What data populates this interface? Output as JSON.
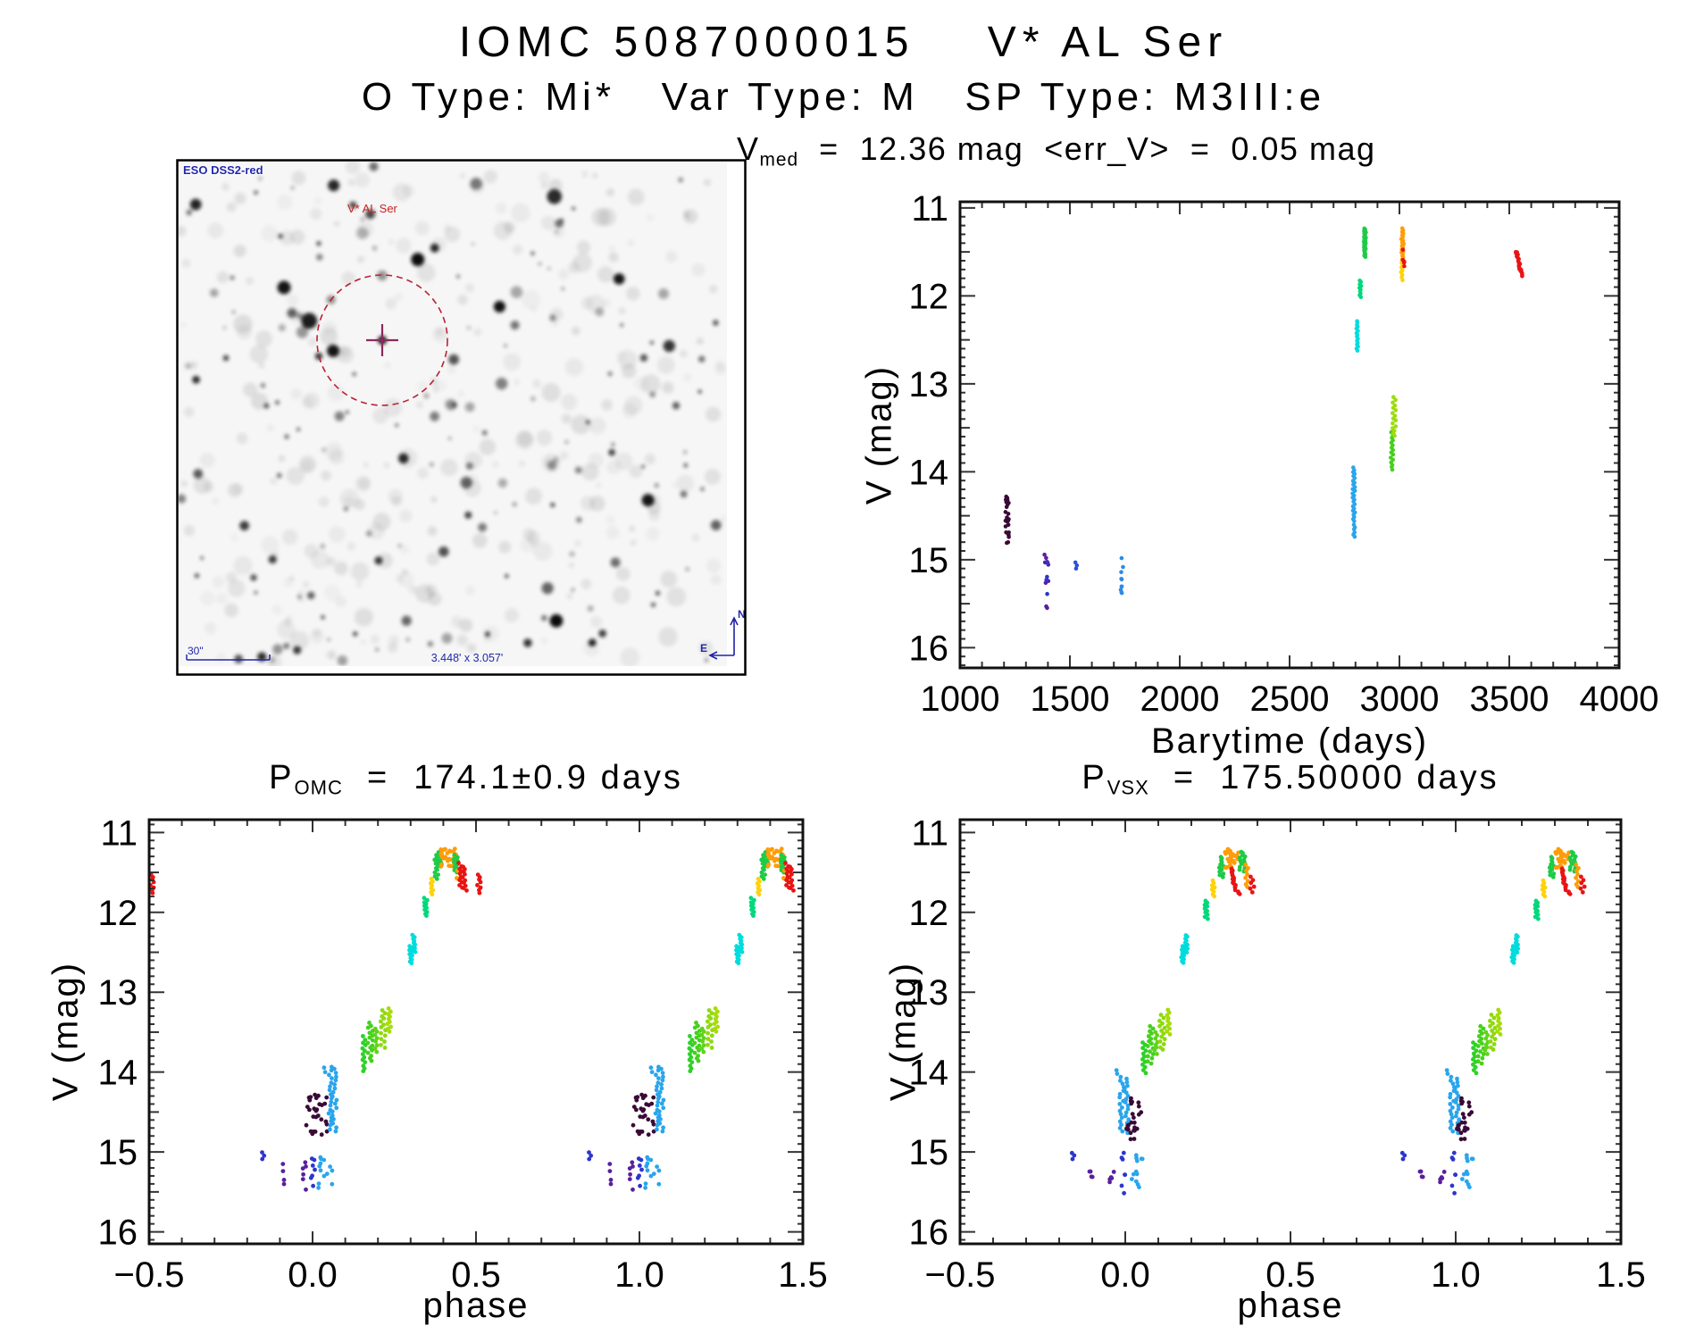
{
  "page": {
    "title": "IOMC 5087000015    V* AL Ser",
    "subtitle": "O Type: Mi*   Var Type: M   SP Type: M3III:e"
  },
  "finder": {
    "survey_label": "ESO DSS2-red",
    "target_label": "V* AL Ser",
    "scale_label": "30\"",
    "fov_label": "3.448' x 3.057'",
    "compass_north": "N",
    "compass_east": "E",
    "annotation_color": "#2228aa",
    "target_marker_color": "#cc2222"
  },
  "lightcurve_header": {
    "prefix": "V",
    "sub": "med",
    "rest": "  =  12.36 mag  <err_V>  =  0.05 mag"
  },
  "omc_header": {
    "prefix": "P",
    "sub": "OMC",
    "rest": "  =  174.1±0.9 days"
  },
  "vsx_header": {
    "prefix": "P",
    "sub": "VSX",
    "rest": "  =  175.50000 days"
  },
  "chart_data": [
    {
      "id": "lightcurve",
      "type": "scatter",
      "title": "V_med = 12.36 mag <err_V> = 0.05 mag",
      "xlabel": "Barytime (days)",
      "ylabel": "V (mag)",
      "xlim": [
        1000,
        4000
      ],
      "ylim": [
        16,
        11
      ],
      "y_axis_inverted_mag": true,
      "xticks": [
        1000,
        1500,
        2000,
        2500,
        3000,
        3500,
        4000
      ],
      "xtick_labels": [
        "1000",
        "1500",
        "2000",
        "2500",
        "3000",
        "3500",
        "4000"
      ],
      "yticks": [
        11,
        12,
        13,
        14,
        15,
        16
      ],
      "ytick_labels": [
        "11",
        "12",
        "13",
        "14",
        "15",
        "16"
      ],
      "x_minor": 100,
      "y_minor": 0.1,
      "grid": false,
      "legend": "none (color encodes observing epoch)",
      "dot": 2.3,
      "wrap": 0,
      "clusters": [
        {
          "x": [
            1205,
            1222
          ],
          "v": [
            14.28,
            14.82
          ],
          "c": "#3a0a36",
          "n": 26,
          "k": "scatter"
        },
        {
          "x": [
            1382,
            1402
          ],
          "v": [
            14.92,
            15.55
          ],
          "c": "#5a1f9e",
          "n": 10,
          "k": "scatter"
        },
        {
          "x": [
            1388,
            1400
          ],
          "v": [
            15.02,
            15.45
          ],
          "c": "#2d35cc",
          "n": 4,
          "k": "scatter"
        },
        {
          "x": [
            1525,
            1533
          ],
          "v": [
            15.02,
            15.13
          ],
          "c": "#2d50d8",
          "n": 3,
          "k": "strip"
        },
        {
          "x": [
            1730,
            1744
          ],
          "v": [
            14.98,
            15.42
          ],
          "c": "#2e8ae4",
          "n": 10,
          "k": "scatter"
        },
        {
          "x": [
            2786,
            2798
          ],
          "v": [
            13.95,
            14.58
          ],
          "c": "#29a5ec",
          "n": 26,
          "k": "strip"
        },
        {
          "x": [
            2790,
            2800
          ],
          "v": [
            14.6,
            14.76
          ],
          "c": "#29a5ec",
          "n": 6,
          "k": "strip"
        },
        {
          "x": [
            2804,
            2812
          ],
          "v": [
            12.28,
            12.64
          ],
          "c": "#00dcdc",
          "n": 16,
          "k": "strip"
        },
        {
          "x": [
            2818,
            2826
          ],
          "v": [
            11.82,
            12.03
          ],
          "c": "#00d87c",
          "n": 10,
          "k": "strip"
        },
        {
          "x": [
            2836,
            2848
          ],
          "v": [
            11.23,
            11.57
          ],
          "c": "#1ecb46",
          "n": 22,
          "k": "strip"
        },
        {
          "x": [
            2960,
            2972
          ],
          "v": [
            13.55,
            14.0
          ],
          "c": "#46d01e",
          "n": 16,
          "k": "strip"
        },
        {
          "x": [
            2968,
            2984
          ],
          "v": [
            13.15,
            13.62
          ],
          "c": "#9edc0e",
          "n": 16,
          "k": "strip"
        },
        {
          "x": [
            3008,
            3020
          ],
          "v": [
            11.23,
            11.62
          ],
          "c": "#ff9c08",
          "n": 20,
          "k": "strip"
        },
        {
          "x": [
            3006,
            3016
          ],
          "v": [
            11.62,
            11.84
          ],
          "c": "#ffd20a",
          "n": 8,
          "k": "strip"
        },
        {
          "x": [
            3012,
            3022
          ],
          "v": [
            11.42,
            11.72
          ],
          "c": "#e81414",
          "n": 5,
          "k": "scatter"
        },
        {
          "x": [
            3530,
            3562
          ],
          "v": [
            11.49,
            11.78
          ],
          "c": "#e81414",
          "n": 22,
          "k": "blob"
        }
      ]
    },
    {
      "id": "phase_omc",
      "type": "scatter",
      "title": "P_OMC = 174.1±0.9 days",
      "xlabel": "phase",
      "ylabel": "V (mag)",
      "xlim": [
        -0.5,
        1.5
      ],
      "ylim": [
        16,
        11
      ],
      "y_axis_inverted_mag": true,
      "xticks": [
        -0.5,
        0.0,
        0.5,
        1.0,
        1.5
      ],
      "xtick_labels": [
        "−0.5",
        "0.0",
        "0.5",
        "1.0",
        "1.5"
      ],
      "yticks": [
        11,
        12,
        13,
        14,
        15,
        16
      ],
      "ytick_labels": [
        "11",
        "12",
        "13",
        "14",
        "15",
        "16"
      ],
      "x_minor": 0.1,
      "y_minor": 0.1,
      "grid": false,
      "legend": "none (color encodes observing epoch)",
      "dot": 2.4,
      "wrap": 1,
      "clusters": [
        {
          "x": [
            -0.155,
            -0.147
          ],
          "v": [
            15.0,
            15.12
          ],
          "c": "#2d35cc",
          "n": 3,
          "k": "strip"
        },
        {
          "x": [
            -0.096,
            -0.086
          ],
          "v": [
            15.15,
            15.45
          ],
          "c": "#5a1f9e",
          "n": 4,
          "k": "scatter"
        },
        {
          "x": [
            -0.036,
            -0.02
          ],
          "v": [
            15.12,
            15.48
          ],
          "c": "#5a1f9e",
          "n": 6,
          "k": "scatter"
        },
        {
          "x": [
            -0.005,
            0.007
          ],
          "v": [
            14.9,
            15.52
          ],
          "c": "#2d35cc",
          "n": 7,
          "k": "scatter"
        },
        {
          "x": [
            0.018,
            0.06
          ],
          "v": [
            15.02,
            15.45
          ],
          "c": "#29a5ec",
          "n": 13,
          "k": "scatter"
        },
        {
          "x": [
            -0.02,
            0.045
          ],
          "v": [
            14.28,
            14.8
          ],
          "c": "#3a0a36",
          "n": 28,
          "k": "scatter"
        },
        {
          "x": [
            0.045,
            0.075
          ],
          "v": [
            13.93,
            14.76
          ],
          "c": "#29a5ec",
          "n": 34,
          "k": "strip"
        },
        {
          "x": [
            0.032,
            0.04
          ],
          "v": [
            13.94,
            14.03
          ],
          "c": "#29a5ec",
          "n": 2,
          "k": "strip"
        },
        {
          "x": [
            0.152,
            0.163
          ],
          "v": [
            13.55,
            14.02
          ],
          "c": "#2ed128",
          "n": 13,
          "k": "strip"
        },
        {
          "x": [
            0.168,
            0.187
          ],
          "v": [
            13.38,
            13.88
          ],
          "c": "#46d01e",
          "n": 16,
          "k": "strip"
        },
        {
          "x": [
            0.19,
            0.2
          ],
          "v": [
            13.45,
            13.78
          ],
          "c": "#5fd41a",
          "n": 8,
          "k": "strip"
        },
        {
          "x": [
            0.207,
            0.224
          ],
          "v": [
            13.22,
            13.72
          ],
          "c": "#8ed90f",
          "n": 14,
          "k": "strip"
        },
        {
          "x": [
            0.227,
            0.24
          ],
          "v": [
            13.2,
            13.52
          ],
          "c": "#a6dc0a",
          "n": 10,
          "k": "strip"
        },
        {
          "x": [
            0.296,
            0.306
          ],
          "v": [
            12.42,
            12.66
          ],
          "c": "#00dcdc",
          "n": 10,
          "k": "strip"
        },
        {
          "x": [
            0.305,
            0.315
          ],
          "v": [
            12.28,
            12.52
          ],
          "c": "#00dcdc",
          "n": 10,
          "k": "strip"
        },
        {
          "x": [
            0.34,
            0.352
          ],
          "v": [
            11.82,
            12.06
          ],
          "c": "#00d87c",
          "n": 10,
          "k": "strip"
        },
        {
          "x": [
            0.359,
            0.369
          ],
          "v": [
            11.58,
            11.8
          ],
          "c": "#ffd20a",
          "n": 8,
          "k": "strip"
        },
        {
          "x": [
            0.373,
            0.385
          ],
          "v": [
            11.28,
            11.6
          ],
          "c": "#1ecb46",
          "n": 12,
          "k": "strip"
        },
        {
          "x": [
            0.385,
            0.395
          ],
          "v": [
            11.24,
            11.45
          ],
          "c": "#1ecb46",
          "n": 8,
          "k": "strip"
        },
        {
          "x": [
            0.392,
            0.44
          ],
          "v": [
            11.2,
            11.43
          ],
          "c": "#ff9c08",
          "n": 30,
          "k": "scatter"
        },
        {
          "x": [
            0.432,
            0.447
          ],
          "v": [
            11.28,
            11.52
          ],
          "c": "#1ecb46",
          "n": 10,
          "k": "strip"
        },
        {
          "x": [
            0.44,
            0.456
          ],
          "v": [
            11.42,
            11.6
          ],
          "c": "#ff9c08",
          "n": 5,
          "k": "scatter"
        },
        {
          "x": [
            0.446,
            0.458
          ],
          "v": [
            11.38,
            11.72
          ],
          "c": "#e81414",
          "n": 10,
          "k": "strip"
        },
        {
          "x": [
            0.458,
            0.472
          ],
          "v": [
            11.42,
            11.76
          ],
          "c": "#e81414",
          "n": 10,
          "k": "strip"
        },
        {
          "x": [
            0.503,
            0.517
          ],
          "v": [
            11.52,
            11.78
          ],
          "c": "#e81414",
          "n": 8,
          "k": "strip"
        }
      ]
    },
    {
      "id": "phase_vsx",
      "type": "scatter",
      "title": "P_VSX = 175.50000 days",
      "xlabel": "phase",
      "ylabel": "V (mag)",
      "xlim": [
        -0.5,
        1.5
      ],
      "ylim": [
        16,
        11
      ],
      "y_axis_inverted_mag": true,
      "xticks": [
        -0.5,
        0.0,
        0.5,
        1.0,
        1.5
      ],
      "xtick_labels": [
        "−0.5",
        "0.0",
        "0.5",
        "1.0",
        "1.5"
      ],
      "yticks": [
        11,
        12,
        13,
        14,
        15,
        16
      ],
      "ytick_labels": [
        "11",
        "12",
        "13",
        "14",
        "15",
        "16"
      ],
      "x_minor": 0.1,
      "y_minor": 0.1,
      "grid": false,
      "legend": "none (color encodes observing epoch)",
      "dot": 2.4,
      "wrap": 1,
      "clusters": [
        {
          "x": [
            -0.162,
            -0.154
          ],
          "v": [
            15.0,
            15.12
          ],
          "c": "#2d35cc",
          "n": 3,
          "k": "strip"
        },
        {
          "x": [
            -0.108,
            -0.098
          ],
          "v": [
            15.18,
            15.45
          ],
          "c": "#5a1f9e",
          "n": 4,
          "k": "scatter"
        },
        {
          "x": [
            -0.048,
            -0.032
          ],
          "v": [
            15.15,
            15.48
          ],
          "c": "#5a1f9e",
          "n": 5,
          "k": "scatter"
        },
        {
          "x": [
            -0.012,
            0.003
          ],
          "v": [
            14.95,
            15.55
          ],
          "c": "#2d35cc",
          "n": 7,
          "k": "scatter"
        },
        {
          "x": [
            0.012,
            0.052
          ],
          "v": [
            15.0,
            15.45
          ],
          "c": "#29a5ec",
          "n": 12,
          "k": "scatter"
        },
        {
          "x": [
            -0.018,
            0.012
          ],
          "v": [
            14.06,
            14.78
          ],
          "c": "#29a5ec",
          "n": 34,
          "k": "strip"
        },
        {
          "x": [
            -0.03,
            -0.022
          ],
          "v": [
            13.97,
            14.06
          ],
          "c": "#29a5ec",
          "n": 2,
          "k": "strip"
        },
        {
          "x": [
            0.004,
            0.048
          ],
          "v": [
            14.28,
            14.86
          ],
          "c": "#3a0a36",
          "n": 24,
          "k": "scatter"
        },
        {
          "x": [
            0.052,
            0.063
          ],
          "v": [
            13.62,
            14.04
          ],
          "c": "#2ed128",
          "n": 12,
          "k": "strip"
        },
        {
          "x": [
            0.066,
            0.085
          ],
          "v": [
            13.42,
            13.92
          ],
          "c": "#46d01e",
          "n": 16,
          "k": "strip"
        },
        {
          "x": [
            0.088,
            0.098
          ],
          "v": [
            13.5,
            13.8
          ],
          "c": "#5fd41a",
          "n": 8,
          "k": "strip"
        },
        {
          "x": [
            0.103,
            0.12
          ],
          "v": [
            13.28,
            13.75
          ],
          "c": "#8ed90f",
          "n": 14,
          "k": "strip"
        },
        {
          "x": [
            0.123,
            0.136
          ],
          "v": [
            13.22,
            13.55
          ],
          "c": "#a6dc0a",
          "n": 10,
          "k": "strip"
        },
        {
          "x": [
            0.169,
            0.179
          ],
          "v": [
            12.42,
            12.65
          ],
          "c": "#00dcdc",
          "n": 10,
          "k": "strip"
        },
        {
          "x": [
            0.179,
            0.189
          ],
          "v": [
            12.28,
            12.52
          ],
          "c": "#00dcdc",
          "n": 10,
          "k": "strip"
        },
        {
          "x": [
            0.24,
            0.252
          ],
          "v": [
            11.85,
            12.1
          ],
          "c": "#00d87c",
          "n": 10,
          "k": "strip"
        },
        {
          "x": [
            0.262,
            0.272
          ],
          "v": [
            11.6,
            11.82
          ],
          "c": "#ffd20a",
          "n": 8,
          "k": "strip"
        },
        {
          "x": [
            0.284,
            0.298
          ],
          "v": [
            11.3,
            11.58
          ],
          "c": "#1ecb46",
          "n": 12,
          "k": "strip"
        },
        {
          "x": [
            0.3,
            0.345
          ],
          "v": [
            11.2,
            11.46
          ],
          "c": "#ff9c08",
          "n": 30,
          "k": "scatter"
        },
        {
          "x": [
            0.345,
            0.365
          ],
          "v": [
            11.24,
            11.5
          ],
          "c": "#1ecb46",
          "n": 14,
          "k": "strip"
        },
        {
          "x": [
            0.362,
            0.372
          ],
          "v": [
            11.4,
            11.72
          ],
          "c": "#ff9c08",
          "n": 8,
          "k": "strip"
        },
        {
          "x": [
            0.315,
            0.347
          ],
          "v": [
            11.45,
            11.78
          ],
          "c": "#e81414",
          "n": 18,
          "k": "blob"
        },
        {
          "x": [
            0.378,
            0.39
          ],
          "v": [
            11.55,
            11.78
          ],
          "c": "#e81414",
          "n": 6,
          "k": "strip"
        }
      ]
    }
  ]
}
